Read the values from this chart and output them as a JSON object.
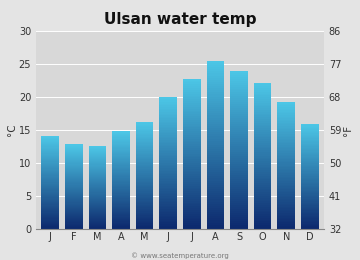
{
  "title": "Ulsan water temp",
  "months": [
    "J",
    "F",
    "M",
    "A",
    "M",
    "J",
    "J",
    "A",
    "S",
    "O",
    "N",
    "D"
  ],
  "values": [
    14.1,
    12.8,
    12.6,
    14.8,
    16.2,
    20.0,
    22.8,
    25.5,
    24.0,
    22.2,
    19.2,
    15.9
  ],
  "ylim_left": [
    0,
    30
  ],
  "ylim_right": [
    32,
    86
  ],
  "yticks_left": [
    0,
    5,
    10,
    15,
    20,
    25,
    30
  ],
  "yticks_right": [
    32,
    41,
    50,
    59,
    68,
    77,
    86
  ],
  "ylabel_left": "°C",
  "ylabel_right": "°F",
  "bar_color_top": "#4dc8e8",
  "bar_color_bottom": "#0d2a6e",
  "background_color": "#e4e4e4",
  "plot_bg_color": "#d8d8d8",
  "grid_color": "#ffffff",
  "title_fontsize": 11,
  "axis_fontsize": 7.5,
  "tick_fontsize": 7,
  "bar_width": 0.75,
  "watermark": "© www.seatemperature.org"
}
